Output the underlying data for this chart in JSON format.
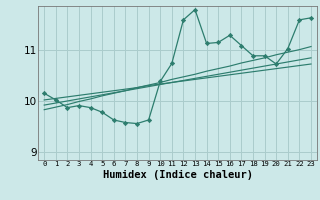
{
  "xlabel": "Humidex (Indice chaleur)",
  "bg_color": "#cce8e8",
  "line_color": "#2d7d6e",
  "grid_color": "#aacccc",
  "x_data": [
    0,
    1,
    2,
    3,
    4,
    5,
    6,
    7,
    8,
    9,
    10,
    11,
    12,
    13,
    14,
    15,
    16,
    17,
    18,
    19,
    20,
    21,
    22,
    23
  ],
  "main_data": [
    10.15,
    10.02,
    9.87,
    9.91,
    9.87,
    9.78,
    9.63,
    9.58,
    9.56,
    9.63,
    10.38,
    10.73,
    11.58,
    11.78,
    11.12,
    11.14,
    11.28,
    11.08,
    10.88,
    10.88,
    10.72,
    11.02,
    11.58,
    11.62
  ],
  "reg_line1": [
    10.02,
    10.05,
    10.08,
    10.11,
    10.14,
    10.17,
    10.2,
    10.23,
    10.26,
    10.3,
    10.33,
    10.36,
    10.39,
    10.42,
    10.45,
    10.48,
    10.51,
    10.54,
    10.57,
    10.6,
    10.63,
    10.66,
    10.69,
    10.72
  ],
  "reg_line2": [
    9.83,
    9.88,
    9.93,
    9.99,
    10.04,
    10.1,
    10.15,
    10.2,
    10.26,
    10.31,
    10.36,
    10.42,
    10.47,
    10.52,
    10.58,
    10.63,
    10.68,
    10.74,
    10.79,
    10.84,
    10.9,
    10.95,
    11.0,
    11.06
  ],
  "reg_line3": [
    9.92,
    9.96,
    10.0,
    10.04,
    10.08,
    10.12,
    10.16,
    10.2,
    10.24,
    10.28,
    10.32,
    10.36,
    10.4,
    10.44,
    10.48,
    10.52,
    10.56,
    10.6,
    10.64,
    10.68,
    10.72,
    10.76,
    10.8,
    10.84
  ],
  "ylim": [
    8.85,
    11.85
  ],
  "yticks": [
    9,
    10,
    11
  ],
  "xticks": [
    0,
    1,
    2,
    3,
    4,
    5,
    6,
    7,
    8,
    9,
    10,
    11,
    12,
    13,
    14,
    15,
    16,
    17,
    18,
    19,
    20,
    21,
    22,
    23
  ]
}
